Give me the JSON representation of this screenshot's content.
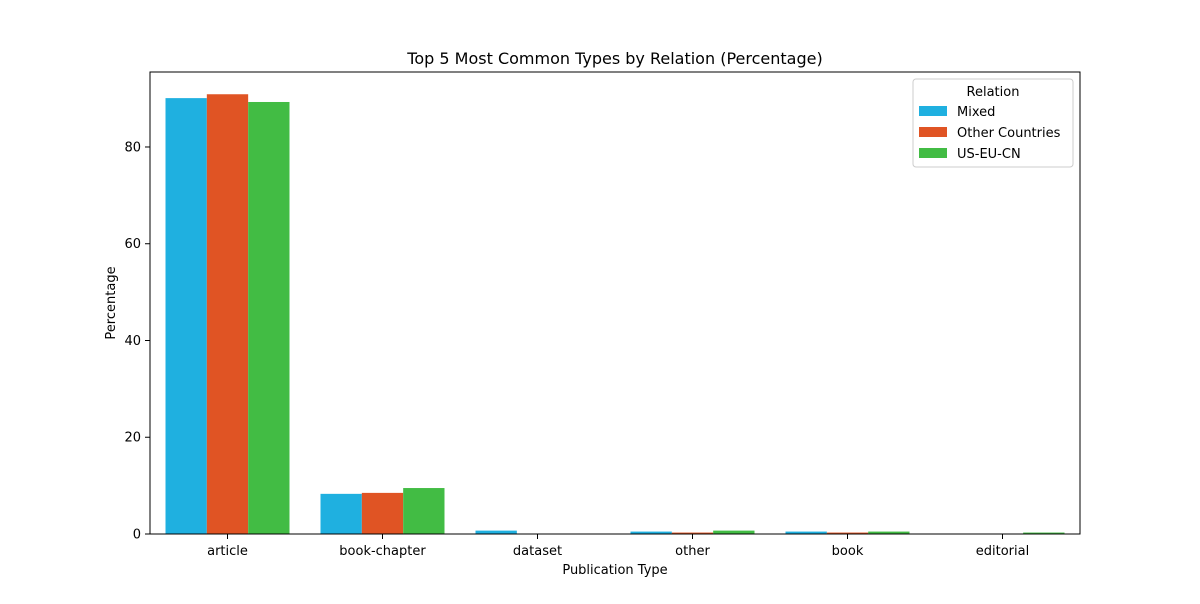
{
  "chart_data": {
    "type": "bar",
    "title": "Top 5 Most Common Types by Relation (Percentage)",
    "xlabel": "Publication Type",
    "ylabel": "Percentage",
    "categories": [
      "article",
      "book-chapter",
      "dataset",
      "other",
      "book",
      "editorial"
    ],
    "series": [
      {
        "name": "Mixed",
        "color": "#1fb0e0",
        "values": [
          90.1,
          8.3,
          0.7,
          0.5,
          0.5,
          0.0
        ]
      },
      {
        "name": "Other Countries",
        "color": "#e05424",
        "values": [
          90.9,
          8.5,
          0.0,
          0.3,
          0.3,
          0.0
        ]
      },
      {
        "name": "US-EU-CN",
        "color": "#42bc44",
        "values": [
          89.3,
          9.5,
          0.0,
          0.7,
          0.5,
          0.3
        ]
      }
    ],
    "ylim": [
      0,
      95.5
    ],
    "yticks": [
      0,
      20,
      40,
      60,
      80
    ],
    "grid": false,
    "legend": {
      "title": "Relation",
      "position": "top-right"
    }
  }
}
